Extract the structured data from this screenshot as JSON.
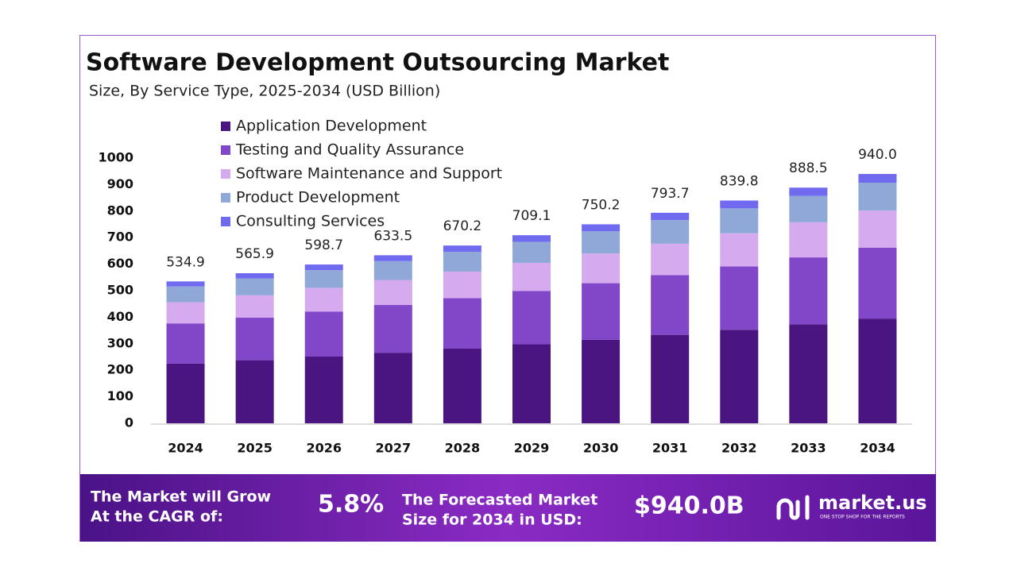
{
  "chart_data": {
    "type": "stacked_bar",
    "title": "Software Development Outsourcing Market",
    "subtitle": "Size, By Service Type, 2025-2034 (USD Billion)",
    "categories": [
      "2024",
      "2025",
      "2026",
      "2027",
      "2028",
      "2029",
      "2030",
      "2031",
      "2032",
      "2033",
      "2034"
    ],
    "series": [
      {
        "name": "Application Development",
        "color": "#4a1580",
        "values": [
          224.7,
          237.7,
          251.5,
          266.1,
          281.5,
          297.8,
          315.1,
          333.4,
          352.7,
          373.2,
          394.8
        ]
      },
      {
        "name": "Testing and Quality Assurance",
        "color": "#8246c8",
        "values": [
          151.9,
          160.7,
          170.0,
          179.9,
          190.3,
          201.4,
          213.1,
          225.4,
          238.5,
          252.3,
          267.0
        ]
      },
      {
        "name": "Software Maintenance and Support",
        "color": "#d6aaee",
        "values": [
          79.7,
          84.3,
          89.2,
          94.4,
          99.9,
          105.7,
          111.8,
          118.3,
          125.1,
          132.4,
          140.1
        ]
      },
      {
        "name": "Product Development",
        "color": "#8fa8d8",
        "values": [
          59.9,
          63.4,
          67.1,
          71.0,
          75.1,
          79.4,
          84.0,
          88.9,
          94.1,
          99.5,
          105.3
        ]
      },
      {
        "name": "Consulting Services",
        "color": "#6f6af0",
        "values": [
          18.7,
          19.8,
          20.9,
          22.1,
          23.4,
          24.8,
          26.2,
          27.7,
          29.4,
          31.1,
          32.8
        ]
      }
    ],
    "totals": {
      "values": [
        534.9,
        565.9,
        598.7,
        633.5,
        670.2,
        709.1,
        750.2,
        793.7,
        839.8,
        888.5,
        940.0
      ],
      "value_labels": [
        "534.9",
        "565.9",
        "598.7",
        "633.5",
        "670.2",
        "709.1",
        "750.2",
        "793.7",
        "839.8",
        "888.5",
        "940.0"
      ]
    },
    "ylim": [
      0,
      1000
    ],
    "yticks": [
      0,
      100,
      200,
      300,
      400,
      500,
      600,
      700,
      800,
      900,
      1000
    ],
    "grid": false,
    "legend": "top-left"
  },
  "banner": {
    "cagr_label": [
      "The Market will Grow",
      "At the CAGR of:"
    ],
    "cagr": "5.8%",
    "forecast_label": [
      "The Forecasted Market",
      "Size for 2034 in USD:"
    ],
    "forecast": "$940.0B",
    "brand": "market.us",
    "tagline": "ONE STOP SHOP FOR THE REPORTS"
  }
}
